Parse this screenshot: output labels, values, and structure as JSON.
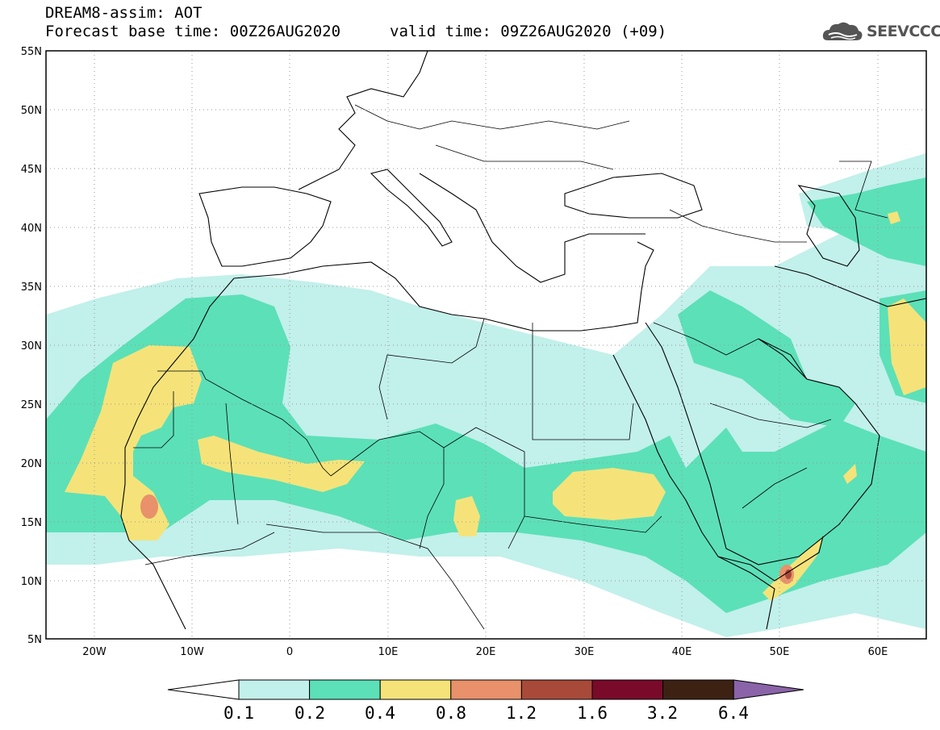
{
  "header": {
    "title_line1": "DREAM8-assim: AOT",
    "title_line2": "Forecast base time: 00Z26AUG2020",
    "valid_time": "valid time: 09Z26AUG2020 (+09)",
    "logo_text": "SEEVCCC",
    "logo_icon": "cloud-icon"
  },
  "map": {
    "lon_range": [
      -25,
      65
    ],
    "lat_range": [
      5,
      55
    ],
    "lat_ticks": [
      "55N",
      "50N",
      "45N",
      "40N",
      "35N",
      "30N",
      "25N",
      "20N",
      "15N",
      "10N",
      "5N"
    ],
    "lon_ticks": [
      "20W",
      "10W",
      "0",
      "10E",
      "20E",
      "30E",
      "40E",
      "50E",
      "60E"
    ],
    "grid": "dotted"
  },
  "colorbar": {
    "levels": [
      "0.1",
      "0.2",
      "0.4",
      "0.8",
      "1.2",
      "1.6",
      "3.2",
      "6.4"
    ],
    "colors": [
      "#ffffff",
      "#c2f0eb",
      "#5ce0b8",
      "#f5e37a",
      "#e8916a",
      "#a84a3a",
      "#7a0a2a",
      "#3d2214",
      "#8a63a8"
    ]
  }
}
